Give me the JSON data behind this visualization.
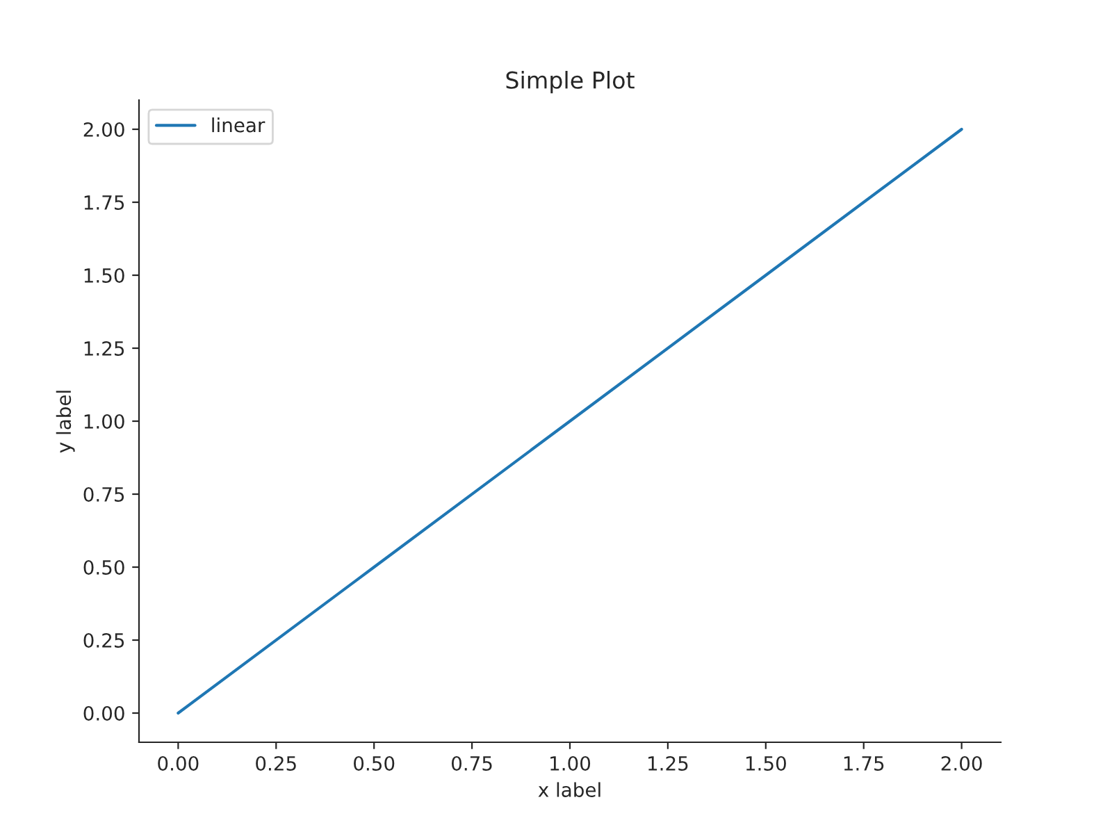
{
  "chart_data": {
    "type": "line",
    "title": "Simple Plot",
    "xlabel": "x label",
    "ylabel": "y label",
    "x": [
      0,
      0.5,
      1,
      1.5,
      2
    ],
    "series": [
      {
        "name": "linear",
        "color": "#1f77b4",
        "values": [
          0,
          0.5,
          1,
          1.5,
          2
        ]
      }
    ],
    "xlim": [
      -0.1,
      2.1
    ],
    "ylim": [
      -0.1,
      2.1
    ],
    "xticks": [
      {
        "value": 0,
        "label": "0.00"
      },
      {
        "value": 0.25,
        "label": "0.25"
      },
      {
        "value": 0.5,
        "label": "0.50"
      },
      {
        "value": 0.75,
        "label": "0.75"
      },
      {
        "value": 1,
        "label": "1.00"
      },
      {
        "value": 1.25,
        "label": "1.25"
      },
      {
        "value": 1.5,
        "label": "1.50"
      },
      {
        "value": 1.75,
        "label": "1.75"
      },
      {
        "value": 2,
        "label": "2.00"
      }
    ],
    "yticks": [
      {
        "value": 0,
        "label": "0.00"
      },
      {
        "value": 0.25,
        "label": "0.25"
      },
      {
        "value": 0.5,
        "label": "0.50"
      },
      {
        "value": 0.75,
        "label": "0.75"
      },
      {
        "value": 1,
        "label": "1.00"
      },
      {
        "value": 1.25,
        "label": "1.25"
      },
      {
        "value": 1.5,
        "label": "1.50"
      },
      {
        "value": 1.75,
        "label": "1.75"
      },
      {
        "value": 2,
        "label": "2.00"
      }
    ],
    "grid": false,
    "legend": "top left",
    "marker": "none",
    "line_style": "solid"
  }
}
